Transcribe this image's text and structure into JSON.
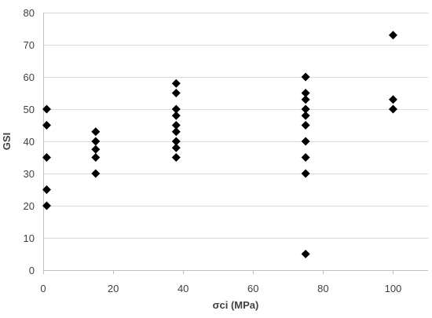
{
  "chart_data": {
    "type": "scatter",
    "title": "",
    "xlabel": "σci (MPa)",
    "ylabel": "GSI",
    "xlim": [
      0,
      110
    ],
    "ylim": [
      0,
      80
    ],
    "xticks": [
      0,
      20,
      40,
      60,
      80,
      100
    ],
    "yticks": [
      0,
      10,
      20,
      30,
      40,
      50,
      60,
      70,
      80
    ],
    "grid": "horizontal",
    "legend": "none",
    "marker": "diamond",
    "marker_color": "#000000",
    "series": [
      {
        "points": [
          [
            1,
            50
          ],
          [
            1,
            45
          ],
          [
            1,
            35
          ],
          [
            1,
            25
          ],
          [
            1,
            20
          ],
          [
            15,
            43
          ],
          [
            15,
            40
          ],
          [
            15,
            37.5
          ],
          [
            15,
            35
          ],
          [
            15,
            30
          ],
          [
            38,
            58
          ],
          [
            38,
            55
          ],
          [
            38,
            50
          ],
          [
            38,
            48
          ],
          [
            38,
            45
          ],
          [
            38,
            43
          ],
          [
            38,
            40
          ],
          [
            38,
            38
          ],
          [
            38,
            35
          ],
          [
            75,
            60
          ],
          [
            75,
            55
          ],
          [
            75,
            53
          ],
          [
            75,
            50
          ],
          [
            75,
            48
          ],
          [
            75,
            45
          ],
          [
            75,
            40
          ],
          [
            75,
            35
          ],
          [
            75,
            30
          ],
          [
            75,
            5
          ],
          [
            100,
            73
          ],
          [
            100,
            53
          ],
          [
            100,
            50
          ]
        ]
      }
    ]
  }
}
